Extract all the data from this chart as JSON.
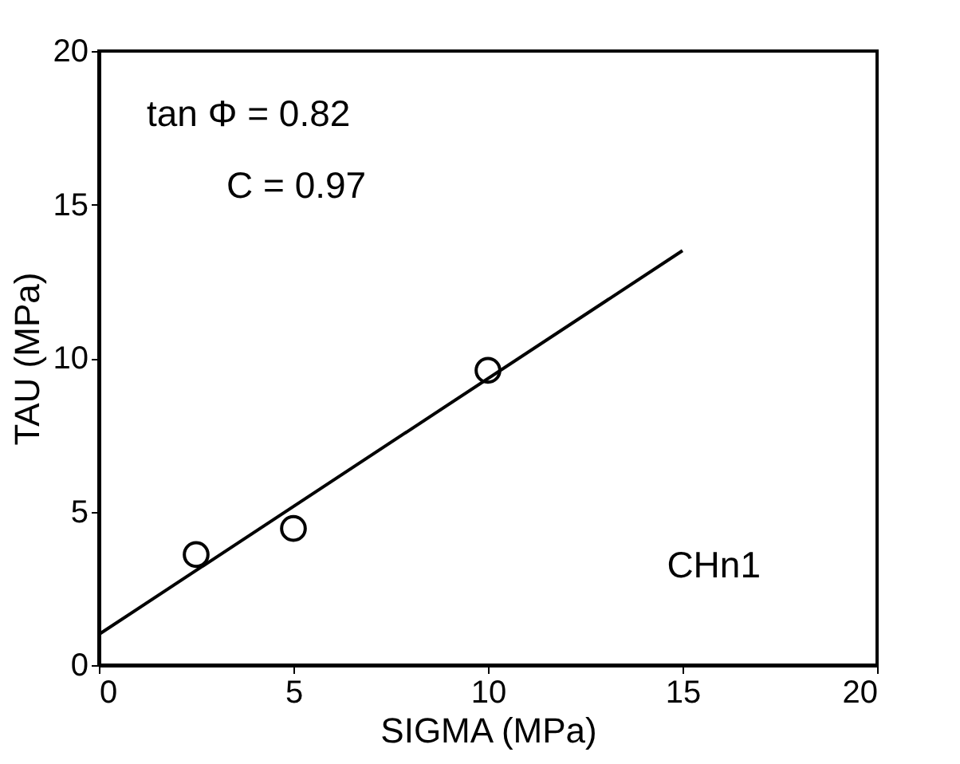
{
  "chart_data": {
    "type": "scatter",
    "xlabel": "SIGMA (MPa)",
    "ylabel": "TAU (MPa)",
    "xlim": [
      0,
      20
    ],
    "ylim": [
      0,
      20
    ],
    "xticks": [
      0,
      5,
      10,
      15,
      20
    ],
    "yticks": [
      0,
      5,
      10,
      15,
      20
    ],
    "grid": false,
    "series": [
      {
        "color": "#000000",
        "marker": "circle",
        "x": [
          2.5,
          5,
          10
        ],
        "values": [
          3.6,
          4.45,
          9.6
        ]
      },
      {
        "type": "line",
        "color": "#000000",
        "marker": "none",
        "line_style": "solid",
        "x": [
          0,
          15
        ],
        "values": [
          1.0,
          13.5
        ]
      }
    ],
    "annotations": [
      "tan Φ =   0.82",
      "C =   0.97",
      "CHn1"
    ]
  }
}
